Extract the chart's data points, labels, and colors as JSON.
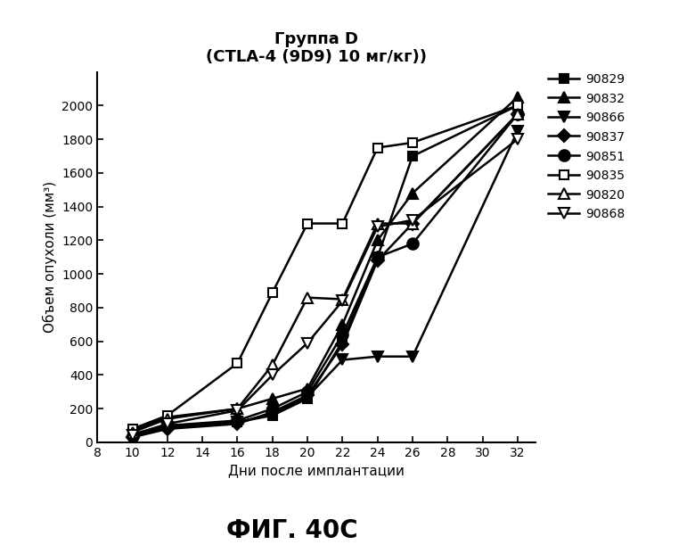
{
  "title_line1": "Группа D",
  "title_line2": "(CTLA-4 (9D9) 10 мг/кг))",
  "xlabel": "Дни после имплантации",
  "ylabel": "Объем опухоли (мм³)",
  "fig_label": "ФИГ. 40C",
  "xlim": [
    8,
    33
  ],
  "ylim": [
    0,
    2200
  ],
  "xticks": [
    8,
    10,
    12,
    14,
    16,
    18,
    20,
    22,
    24,
    26,
    28,
    30,
    32
  ],
  "yticks": [
    0,
    200,
    400,
    600,
    800,
    1000,
    1200,
    1400,
    1600,
    1800,
    2000
  ],
  "series": [
    {
      "label": "90829",
      "marker": "s",
      "fillstyle": "full",
      "x": [
        10,
        12,
        16,
        18,
        20,
        22,
        24,
        26,
        32
      ],
      "y": [
        50,
        100,
        120,
        160,
        260,
        600,
        1100,
        1700,
        2000
      ]
    },
    {
      "label": "90832",
      "marker": "^",
      "fillstyle": "full",
      "x": [
        10,
        12,
        16,
        18,
        20,
        22,
        24,
        26,
        32
      ],
      "y": [
        70,
        150,
        200,
        260,
        320,
        700,
        1200,
        1480,
        2050
      ]
    },
    {
      "label": "90866",
      "marker": "v",
      "fillstyle": "full",
      "x": [
        10,
        12,
        16,
        18,
        20,
        22,
        24,
        26,
        32
      ],
      "y": [
        40,
        90,
        120,
        170,
        270,
        490,
        510,
        510,
        1850
      ]
    },
    {
      "label": "90837",
      "marker": "D",
      "fillstyle": "full",
      "x": [
        10,
        12,
        16,
        18,
        20,
        22,
        24,
        26,
        32
      ],
      "y": [
        30,
        80,
        110,
        180,
        280,
        580,
        1080,
        1300,
        1950
      ]
    },
    {
      "label": "90851",
      "marker": "o",
      "fillstyle": "full",
      "x": [
        10,
        12,
        16,
        18,
        20,
        22,
        24,
        26,
        32
      ],
      "y": [
        35,
        100,
        130,
        200,
        300,
        640,
        1100,
        1180,
        1950
      ]
    },
    {
      "label": "90835",
      "marker": "s",
      "fillstyle": "none",
      "x": [
        10,
        12,
        16,
        18,
        20,
        22,
        24,
        26,
        32
      ],
      "y": [
        80,
        160,
        470,
        890,
        1300,
        1300,
        1750,
        1780,
        2000
      ]
    },
    {
      "label": "90820",
      "marker": "^",
      "fillstyle": "none",
      "x": [
        10,
        12,
        16,
        18,
        20,
        22,
        24,
        26,
        32
      ],
      "y": [
        60,
        140,
        200,
        460,
        860,
        850,
        1300,
        1300,
        1950
      ]
    },
    {
      "label": "90868",
      "marker": "v",
      "fillstyle": "none",
      "x": [
        10,
        12,
        16,
        18,
        20,
        22,
        24,
        26,
        32
      ],
      "y": [
        45,
        110,
        190,
        400,
        590,
        840,
        1280,
        1320,
        1800
      ]
    }
  ],
  "line_color": "#000000",
  "background_color": "#ffffff",
  "title_fontsize": 13,
  "label_fontsize": 11,
  "tick_fontsize": 10,
  "legend_fontsize": 10,
  "fig_label_fontsize": 20
}
